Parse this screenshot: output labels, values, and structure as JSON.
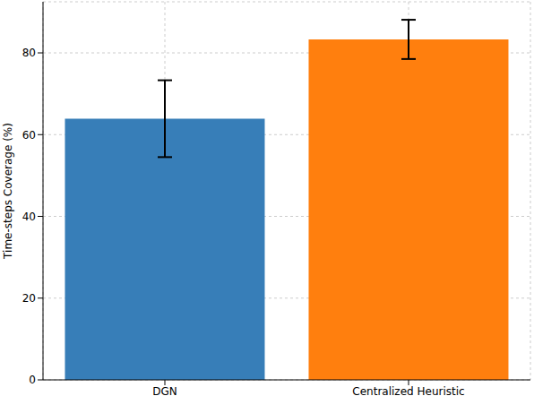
{
  "chart_data": {
    "type": "bar",
    "categories": [
      "DGN",
      "Centralized Heuristic"
    ],
    "values": [
      63.9,
      83.3
    ],
    "errors": [
      9.4,
      4.8
    ],
    "colors": [
      "#377eb8",
      "#ff7f0e"
    ],
    "ylabel": "Time-steps Coverage (%)",
    "ylim": [
      0,
      92.5
    ],
    "yticks": [
      0,
      20,
      40,
      60,
      80
    ],
    "grid": true
  }
}
